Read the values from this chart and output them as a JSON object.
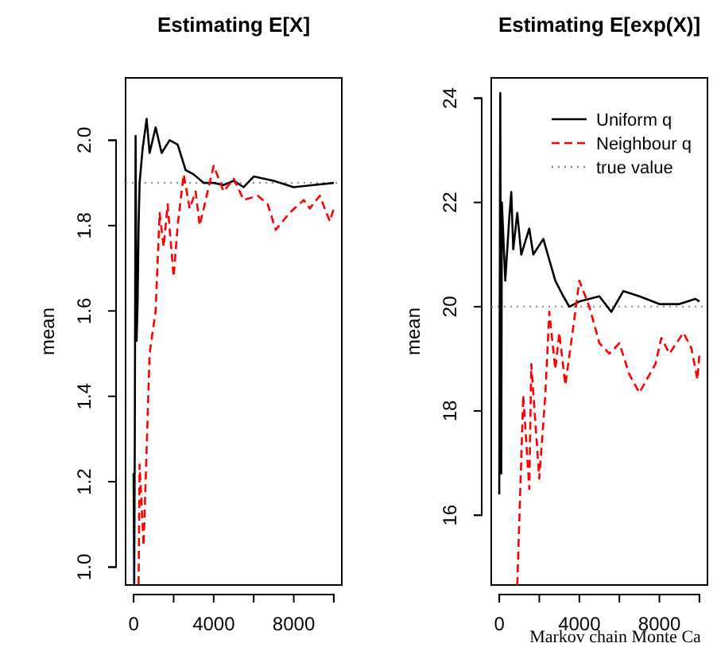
{
  "chart_data": [
    {
      "type": "line",
      "title": "Estimating E[X]",
      "ylabel": "mean",
      "xlim": [
        -400,
        10400
      ],
      "ylim": [
        0.958,
        2.146
      ],
      "xticks": [
        0,
        {
          "value": 2000,
          "label": null
        },
        4000,
        {
          "value": 6000,
          "label": null
        },
        8000,
        {
          "value": 10000,
          "label": null
        }
      ],
      "yticks": [
        {
          "value": 1,
          "label": "1.0"
        },
        1.2,
        1.4,
        1.6,
        1.8,
        {
          "value": 2,
          "label": "2.0"
        }
      ],
      "ref_lines": [
        {
          "axis": "y",
          "value": 1.9,
          "color": "#888888",
          "line_style": "dotted"
        }
      ],
      "series": [
        {
          "color": "#000000",
          "line_style": "solid",
          "x": [
            0,
            30,
            60,
            100,
            150,
            200,
            250,
            300,
            450,
            650,
            800,
            1100,
            1400,
            1800,
            2200,
            2600,
            3000,
            3500,
            4000,
            4500,
            5000,
            5500,
            6000,
            7000,
            8000,
            9000,
            10000
          ],
          "values": [
            1.22,
            0.96,
            1.3,
            2.01,
            1.53,
            1.62,
            1.8,
            1.9,
            1.98,
            2.05,
            1.97,
            2.03,
            1.97,
            2.0,
            1.99,
            1.93,
            1.92,
            1.9,
            1.9,
            1.895,
            1.905,
            1.89,
            1.915,
            1.905,
            1.89,
            1.895,
            1.9
          ]
        },
        {
          "color": "#ff0000",
          "line_style": "dashed",
          "x": [
            250,
            300,
            500,
            800,
            1100,
            1300,
            1500,
            1700,
            2000,
            2200,
            2500,
            2800,
            3100,
            3300,
            4000,
            4500,
            5000,
            5500,
            6200,
            6700,
            7100,
            7800,
            8500,
            8800,
            9300,
            9800,
            10000
          ],
          "values": [
            0.96,
            1.24,
            1.05,
            1.5,
            1.6,
            1.83,
            1.75,
            1.85,
            1.68,
            1.8,
            1.92,
            1.84,
            1.88,
            1.8,
            1.94,
            1.88,
            1.91,
            1.86,
            1.87,
            1.85,
            1.79,
            1.83,
            1.86,
            1.84,
            1.87,
            1.81,
            1.84
          ]
        }
      ]
    },
    {
      "type": "line",
      "title": "Estimating E[exp(X)]",
      "ylabel": "mean",
      "xlim": [
        -400,
        10400
      ],
      "ylim": [
        14.66,
        24.39
      ],
      "xticks": [
        0,
        {
          "value": 2000,
          "label": null
        },
        4000,
        {
          "value": 6000,
          "label": null
        },
        8000,
        {
          "value": 10000,
          "label": null
        }
      ],
      "yticks": [
        16,
        18,
        20,
        22,
        24
      ],
      "legend": "top right",
      "annotations": [
        "Markov chain Monte Ca"
      ],
      "ref_lines": [
        {
          "axis": "y",
          "value": 20,
          "label": "true value",
          "color": "#888888",
          "line_style": "dotted"
        }
      ],
      "series": [
        {
          "name": "Uniform q",
          "color": "#000000",
          "line_style": "solid",
          "x": [
            0,
            50,
            100,
            130,
            300,
            500,
            600,
            700,
            900,
            1100,
            1500,
            1700,
            2200,
            2800,
            3200,
            3500,
            4000,
            5000,
            5600,
            6200,
            7000,
            8000,
            9000,
            9800,
            10000
          ],
          "values": [
            16.4,
            24.1,
            16.8,
            22,
            20.5,
            21.7,
            22.2,
            21.1,
            21.8,
            21,
            21.5,
            21,
            21.3,
            20.5,
            20.2,
            20,
            20.1,
            20.2,
            19.9,
            20.3,
            20.2,
            20.05,
            20.05,
            20.15,
            20.1
          ]
        },
        {
          "name": "Neighbour q",
          "color": "#ff0000",
          "line_style": "dashed",
          "x": [
            900,
            1200,
            1500,
            1600,
            2000,
            2300,
            2500,
            2800,
            3000,
            3300,
            3800,
            4000,
            4500,
            5000,
            5500,
            6000,
            6500,
            7000,
            7800,
            8100,
            8500,
            9200,
            9600,
            9900,
            10000
          ],
          "values": [
            14.66,
            18.3,
            16.5,
            18.9,
            16.7,
            18.3,
            19.9,
            18.8,
            19.5,
            18.5,
            19.9,
            20.5,
            20,
            19.3,
            19.1,
            19.3,
            18.7,
            18.35,
            18.9,
            19.4,
            19.1,
            19.5,
            19.2,
            18.6,
            19.1
          ]
        }
      ]
    }
  ]
}
